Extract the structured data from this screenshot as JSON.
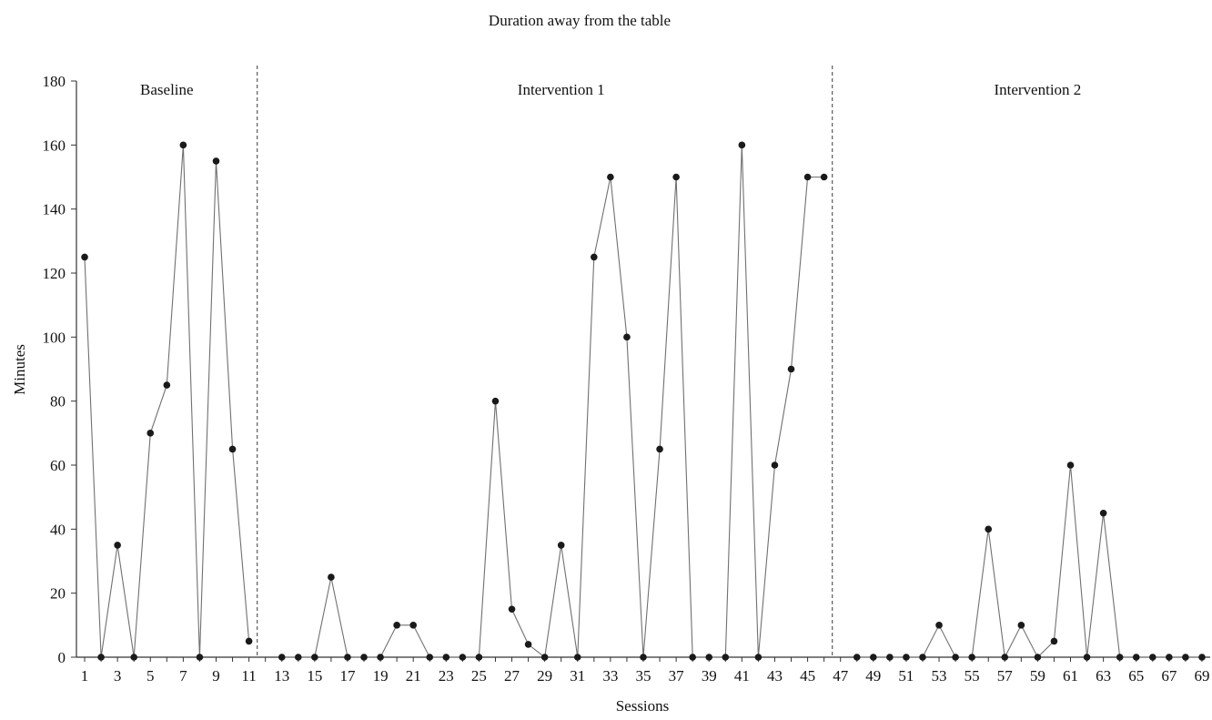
{
  "chart_data": {
    "type": "line",
    "title": "Duration away from the table",
    "xlabel": "Sessions",
    "ylabel": "Minutes",
    "xlim": [
      1,
      69
    ],
    "ylim": [
      0,
      180
    ],
    "y_ticks": [
      0,
      20,
      40,
      60,
      80,
      100,
      120,
      140,
      160,
      180
    ],
    "x_tick_labels": [
      1,
      3,
      5,
      7,
      9,
      11,
      13,
      15,
      17,
      19,
      21,
      23,
      25,
      27,
      29,
      31,
      33,
      35,
      37,
      39,
      41,
      43,
      45,
      47,
      49,
      51,
      53,
      55,
      57,
      59,
      61,
      63,
      65,
      67,
      69
    ],
    "grid": false,
    "legend": "none",
    "phase_change_lines": [
      11.5,
      46.5
    ],
    "phases": [
      {
        "label": "Baseline",
        "center": 6
      },
      {
        "label": "Intervention 1",
        "center": 30
      },
      {
        "label": "Intervention 2",
        "center": 59
      }
    ],
    "series": [
      {
        "segments": [
          {
            "x": [
              1,
              2,
              3,
              4,
              5,
              6,
              7,
              8,
              9,
              10,
              11
            ],
            "y": [
              125,
              0,
              35,
              0,
              70,
              85,
              160,
              0,
              155,
              65,
              5
            ]
          },
          {
            "x": [
              13,
              14,
              15,
              16,
              17,
              18,
              19,
              20,
              21,
              22,
              23,
              24,
              25,
              26,
              27,
              28,
              29,
              30,
              31,
              32,
              33,
              34,
              35,
              36,
              37,
              38,
              39,
              40,
              41,
              42,
              43,
              44,
              45,
              46
            ],
            "y": [
              0,
              0,
              0,
              25,
              0,
              0,
              0,
              10,
              10,
              0,
              0,
              0,
              0,
              80,
              15,
              4,
              0,
              35,
              0,
              125,
              150,
              100,
              0,
              65,
              150,
              0,
              0,
              0,
              160,
              0,
              60,
              90,
              150,
              150
            ]
          },
          {
            "x": [
              48,
              49,
              50,
              51,
              52,
              53,
              54,
              55,
              56,
              57,
              58,
              59,
              60,
              61,
              62,
              63,
              64,
              65,
              66,
              67,
              68,
              69
            ],
            "y": [
              0,
              0,
              0,
              0,
              0,
              10,
              0,
              0,
              40,
              0,
              10,
              0,
              5,
              60,
              0,
              45,
              0,
              0,
              0,
              0,
              0,
              0
            ]
          }
        ]
      }
    ]
  },
  "colors": {
    "line": "#707070",
    "marker": "#1a1a1a",
    "axis": "#333333",
    "phase_line": "#666666"
  }
}
